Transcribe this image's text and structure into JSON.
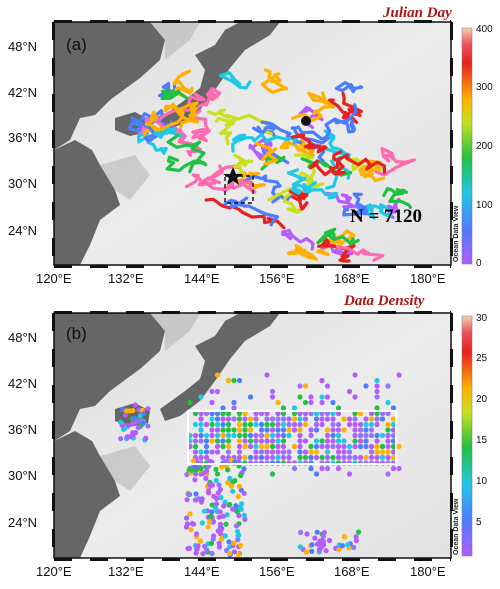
{
  "panels": [
    {
      "label": "(a)",
      "title": "Julian Day",
      "annotation": "N = 7120",
      "credit": "Ocean Data View",
      "colorbar": {
        "ticks": [
          "400",
          "300",
          "200",
          "100",
          "0"
        ],
        "min": 0,
        "max": 400
      }
    },
    {
      "label": "(b)",
      "title": "Data Density",
      "credit": "Ocean Data View",
      "colorbar": {
        "ticks": [
          "30",
          "25",
          "20",
          "15",
          "10",
          "5"
        ],
        "min": 1,
        "max": 30
      }
    }
  ],
  "axes": {
    "lat_ticks": [
      "48°N",
      "42°N",
      "36°N",
      "30°N",
      "24°N"
    ],
    "lon_ticks": [
      "120°E",
      "132°E",
      "144°E",
      "156°E",
      "168°E",
      "180°E"
    ]
  },
  "colors": {
    "land": "#666666",
    "ocean_light": "#eeeeee",
    "box_b": "#ffffff",
    "title": "#b01515"
  }
}
